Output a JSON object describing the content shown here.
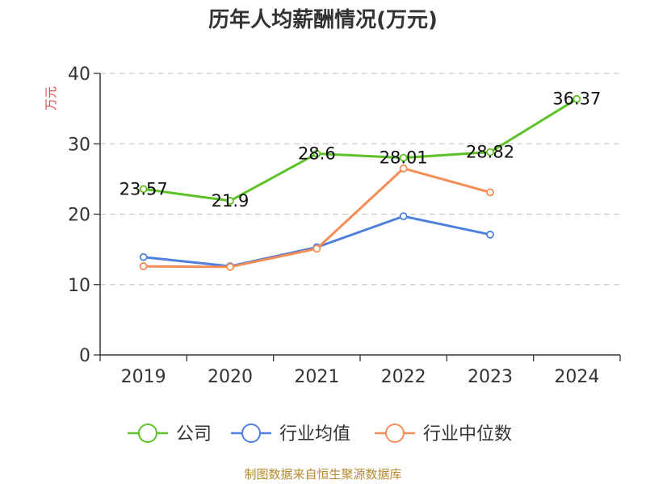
{
  "chart_data": {
    "type": "line",
    "title": "历年人均薪酬情况(万元)",
    "ylabel": "万元",
    "categories": [
      "2019",
      "2020",
      "2021",
      "2022",
      "2023",
      "2024"
    ],
    "ylim": [
      0,
      40
    ],
    "yticks": [
      0,
      10,
      20,
      30,
      40
    ],
    "grid": true,
    "legend_position": "bottom",
    "series": [
      {
        "name": "公司",
        "values": [
          23.57,
          21.9,
          28.6,
          28.01,
          28.82,
          36.37
        ],
        "color": "#5cc228",
        "show_labels": true
      },
      {
        "name": "行业均值",
        "values": [
          13.9,
          12.6,
          15.3,
          19.7,
          17.1,
          null
        ],
        "color": "#4f7fdc",
        "show_labels": false
      },
      {
        "name": "行业中位数",
        "values": [
          12.6,
          12.5,
          15.1,
          26.5,
          23.1,
          null
        ],
        "color": "#f58d56",
        "show_labels": false
      }
    ],
    "labels_company": [
      "23.57",
      "21.9",
      "28.6",
      "28.01",
      "28.82",
      "36.37"
    ]
  },
  "source": "制图数据来自恒生聚源数据库",
  "colors": {
    "source": "#b58a2e",
    "ylabel": "#e0474c",
    "axis": "#333333",
    "grid": "#cccccc"
  }
}
